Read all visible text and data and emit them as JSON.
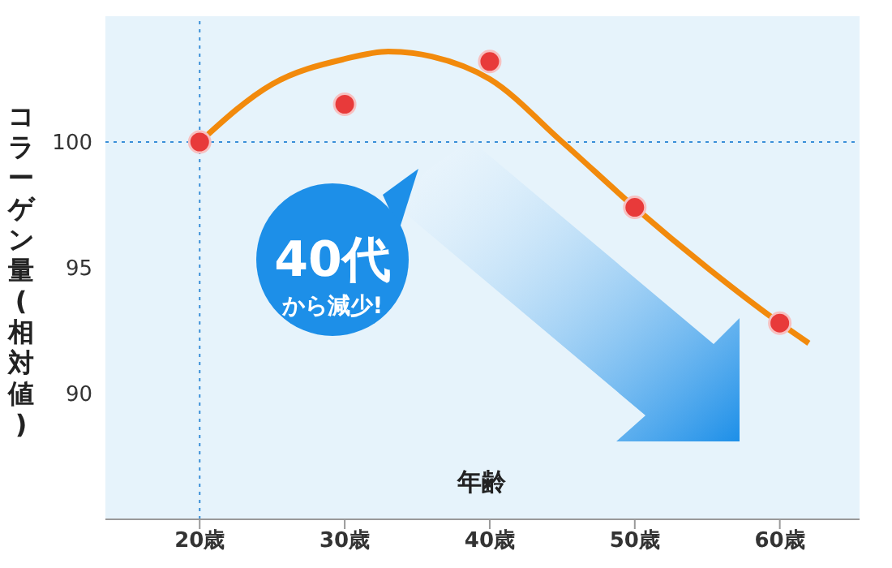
{
  "chart_data": {
    "type": "scatter",
    "ylabel": "コラーゲン量(相対値)",
    "xlabel": "年齢",
    "x": [
      20,
      30,
      40,
      50,
      60
    ],
    "series": [
      {
        "color": "#e83a3a",
        "values": [
          100,
          101.5,
          103.2,
          97.4,
          92.8
        ]
      },
      {
        "type": "line",
        "marker": "none",
        "color": "#f28a0c",
        "x": [
          20,
          25,
          30,
          33,
          36,
          40,
          45,
          50,
          55,
          60,
          62
        ],
        "values": [
          100,
          102.3,
          103.3,
          103.6,
          103.4,
          102.5,
          100,
          97.4,
          95,
          92.8,
          92
        ]
      }
    ],
    "xlim": [
      13.5,
      65.5
    ],
    "xticks": [
      {
        "value": 20,
        "label": "20歳"
      },
      {
        "value": 30,
        "label": "30歳"
      },
      {
        "value": 40,
        "label": "40歳"
      },
      {
        "value": 50,
        "label": "50歳"
      },
      {
        "value": 60,
        "label": "60歳"
      }
    ],
    "ylim": [
      85,
      105
    ],
    "yticks": [
      90,
      95,
      100
    ],
    "ref_lines": [
      {
        "axis": "x",
        "value": 20,
        "color": "#3a8fd8",
        "line_style": "dotted"
      },
      {
        "axis": "y",
        "value": 100,
        "color": "#3a8fd8",
        "line_style": "dotted"
      }
    ],
    "annotations": [
      "40代",
      "から減少!"
    ],
    "grid": false,
    "legend": false,
    "marker": "circle"
  }
}
